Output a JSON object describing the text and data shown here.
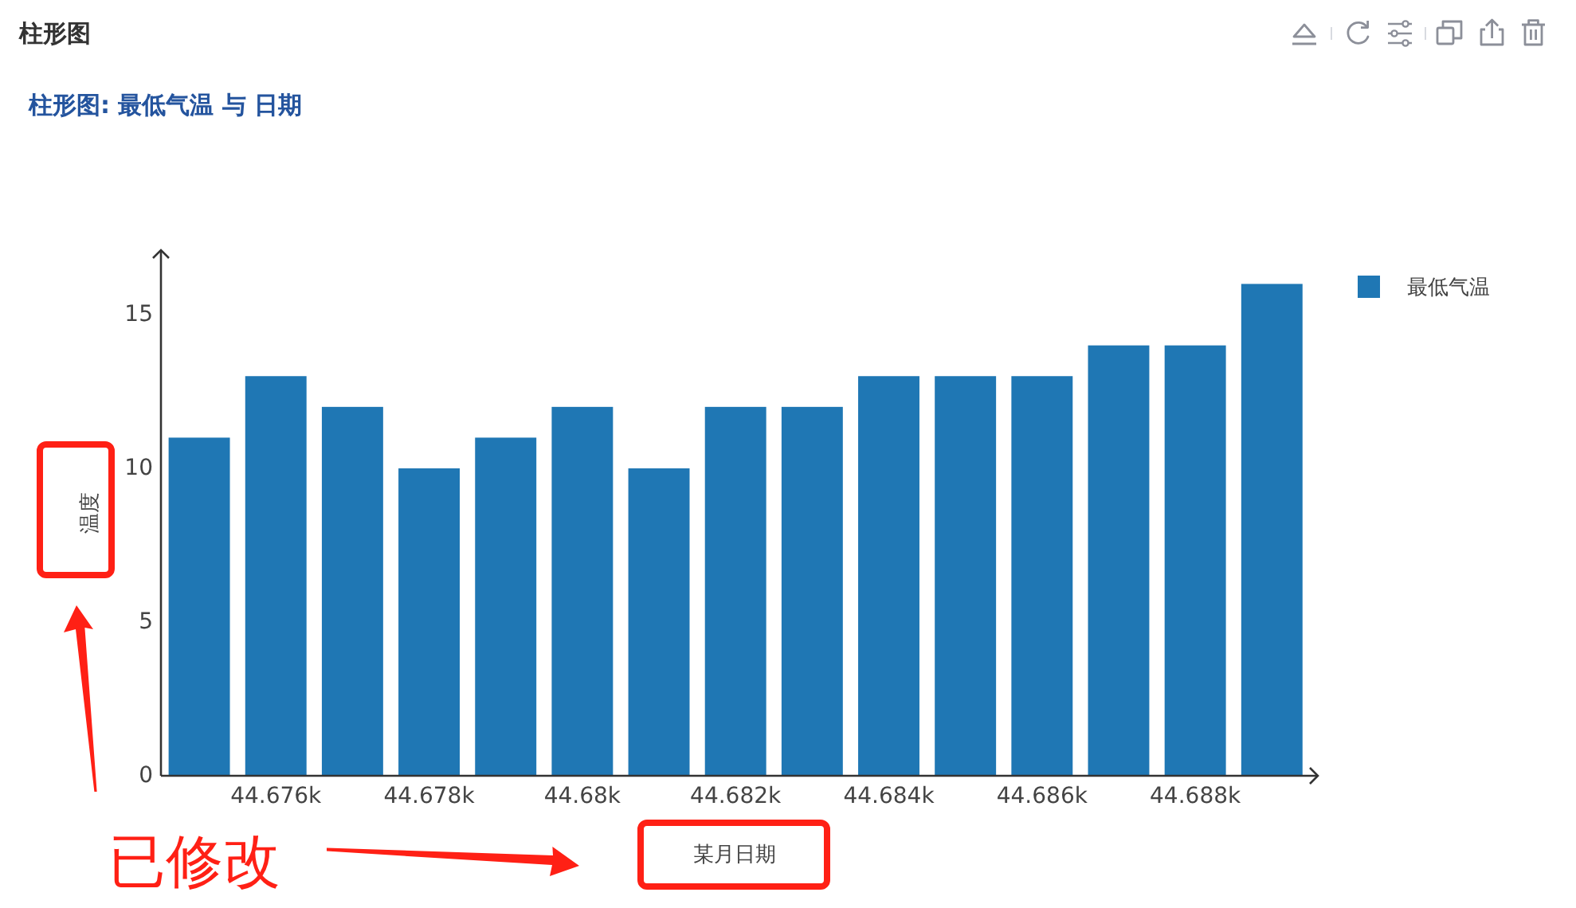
{
  "chart_data": {
    "type": "bar",
    "title": "柱形图",
    "subtitle": "柱形图: 最低气温 与 日期",
    "xlabel": "某月日期",
    "ylabel": "温度",
    "x": [
      44675,
      44676,
      44677,
      44678,
      44679,
      44680,
      44681,
      44682,
      44683,
      44684,
      44685,
      44686,
      44687,
      44688,
      44689
    ],
    "series": [
      {
        "name": "最低气温",
        "color": "#1f77b4",
        "values": [
          11,
          13,
          12,
          10,
          11,
          12,
          10,
          12,
          12,
          13,
          13,
          13,
          14,
          14,
          16
        ]
      }
    ],
    "xlim": [
      44674.5,
      44689.6
    ],
    "ylim": [
      0,
      17.1
    ],
    "xticks": [
      {
        "value": 44676,
        "label": "44.676k"
      },
      {
        "value": 44678,
        "label": "44.678k"
      },
      {
        "value": 44680,
        "label": "44.68k"
      },
      {
        "value": 44682,
        "label": "44.682k"
      },
      {
        "value": 44684,
        "label": "44.684k"
      },
      {
        "value": 44686,
        "label": "44.686k"
      },
      {
        "value": 44688,
        "label": "44.688k"
      }
    ],
    "yticks": [
      0,
      5,
      10,
      15
    ],
    "legend": "top right",
    "annotations": [
      "已修改"
    ]
  }
}
